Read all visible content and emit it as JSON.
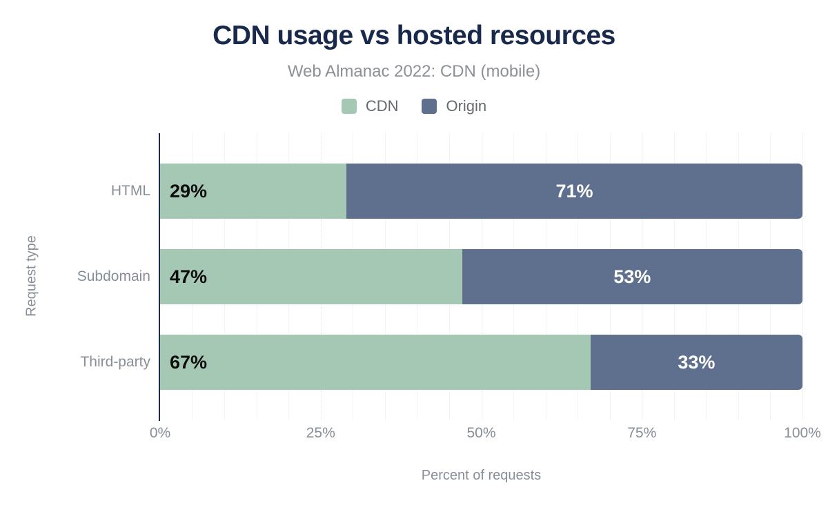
{
  "chart_data": {
    "type": "bar",
    "variant": "horizontal-stacked",
    "title": "CDN usage vs hosted resources",
    "subtitle": "Web Almanac 2022: CDN (mobile)",
    "categories": [
      "HTML",
      "Subdomain",
      "Third-party"
    ],
    "series": [
      {
        "name": "CDN",
        "values": [
          29,
          47,
          67
        ],
        "labels": [
          "29%",
          "47%",
          "67%"
        ],
        "color": "#a4c8b4"
      },
      {
        "name": "Origin",
        "values": [
          71,
          53,
          33
        ],
        "labels": [
          "71%",
          "53%",
          "33%"
        ],
        "color": "#5f708f"
      }
    ],
    "xlabel": "Percent of requests",
    "ylabel": "Request type",
    "xlim": [
      0,
      100
    ],
    "x_ticks": [
      {
        "value": 0,
        "label": "0%"
      },
      {
        "value": 25,
        "label": "25%"
      },
      {
        "value": 50,
        "label": "50%"
      },
      {
        "value": 75,
        "label": "75%"
      },
      {
        "value": 100,
        "label": "100%"
      }
    ],
    "grid": {
      "minor_step_pct": 5,
      "major_step_pct": 25,
      "orientation": "vertical"
    },
    "legend_position": "top",
    "colors": {
      "title_navy": "#19294b",
      "axis_line_navy": "#1b2b4d",
      "cdn_green": "#a4c8b4",
      "origin_slate": "#5f708f",
      "muted_text_gray": "#878e96",
      "label_on_green": "#0d0d0d",
      "label_on_slate": "#ffffff"
    }
  }
}
